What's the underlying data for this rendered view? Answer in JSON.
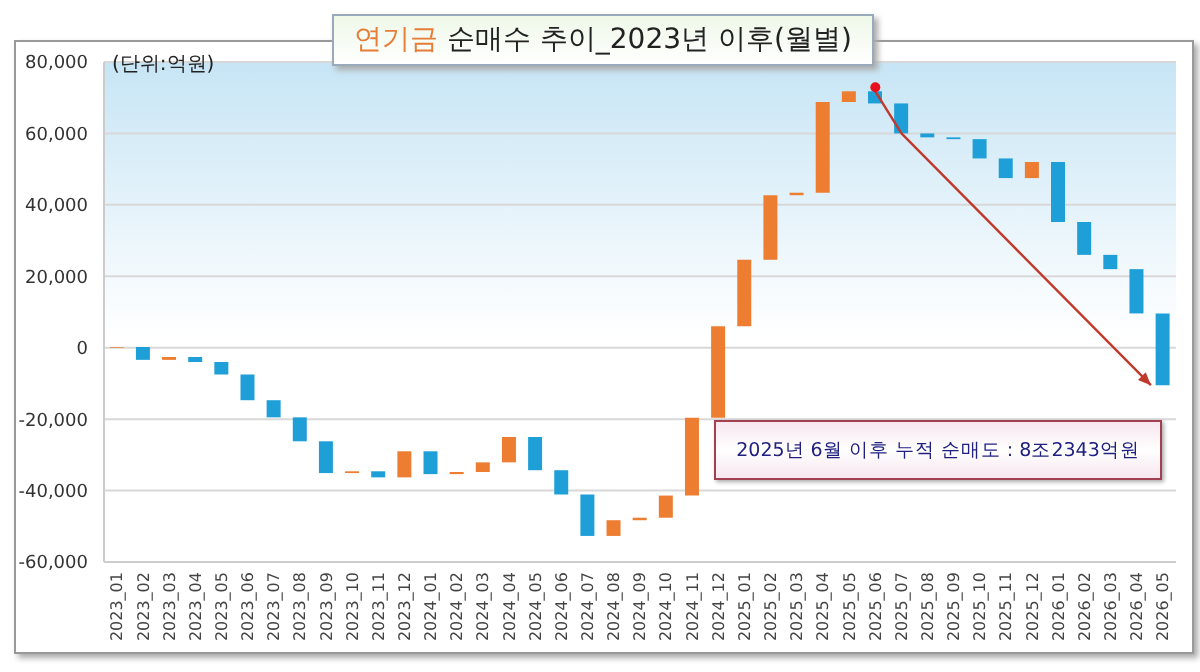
{
  "chart_data": {
    "type": "bar",
    "title": "연기금 순매수 추이_2023년 이후(월별)",
    "ylabel": "(단위:억원)",
    "annotations": [
      "2025년 6월 이후 누적 순매도 : 8조2343억원"
    ],
    "categories": [
      "2023_01",
      "2023_02",
      "2023_03",
      "2023_04",
      "2023_05",
      "2023_06",
      "2023_07",
      "2023_08",
      "2023_09",
      "2023_10",
      "2023_11",
      "2023_12",
      "2024_01",
      "2024_02",
      "2024_03",
      "2024_04",
      "2024_05",
      "2024_06",
      "2024_07",
      "2024_08",
      "2024_09",
      "2024_10",
      "2024_11",
      "2024_12",
      "2025_01",
      "2025_02",
      "2025_03",
      "2025_04",
      "2025_05",
      "2025_06",
      "2025_07",
      "2025_08",
      "2025_09",
      "2025_10",
      "2025_11",
      "2025_12",
      "2026_01",
      "2026_02",
      "2026_03",
      "2026_04",
      "2026_05"
    ],
    "base": [
      0,
      200,
      -3400,
      -2600,
      -4000,
      -7500,
      -14700,
      -19500,
      -26200,
      -35100,
      -34600,
      -36300,
      -29000,
      -35400,
      -34800,
      -32100,
      -25000,
      -34300,
      -41100,
      -52700,
      -48300,
      -47600,
      -41400,
      -19600,
      6000,
      24600,
      42700,
      43400,
      68800,
      71800,
      68400,
      60000,
      58900,
      58400,
      53000,
      47500,
      52000,
      35200,
      26000,
      22000,
      9600
    ],
    "values": [
      200,
      -3600,
      800,
      -1400,
      -3500,
      -7200,
      -4800,
      -6700,
      -8900,
      500,
      -1700,
      7300,
      -6400,
      600,
      2700,
      7100,
      -9300,
      -6800,
      -11600,
      4400,
      700,
      6200,
      21800,
      25600,
      18600,
      18100,
      700,
      25400,
      3000,
      -3400,
      -8400,
      -1100,
      -500,
      -5400,
      -5500,
      4500,
      -16800,
      -9200,
      -4000,
      -12400,
      -20100
    ],
    "colors": [
      "#ed7d31",
      "#1f9fd8",
      "#ed7d31",
      "#1f9fd8",
      "#1f9fd8",
      "#1f9fd8",
      "#1f9fd8",
      "#1f9fd8",
      "#1f9fd8",
      "#ed7d31",
      "#1f9fd8",
      "#ed7d31",
      "#1f9fd8",
      "#ed7d31",
      "#ed7d31",
      "#ed7d31",
      "#1f9fd8",
      "#1f9fd8",
      "#1f9fd8",
      "#ed7d31",
      "#ed7d31",
      "#ed7d31",
      "#ed7d31",
      "#ed7d31",
      "#ed7d31",
      "#ed7d31",
      "#ed7d31",
      "#ed7d31",
      "#ed7d31",
      "#1f9fd8",
      "#1f9fd8",
      "#1f9fd8",
      "#1f9fd8",
      "#1f9fd8",
      "#1f9fd8",
      "#ed7d31",
      "#1f9fd8",
      "#1f9fd8",
      "#1f9fd8",
      "#1f9fd8",
      "#1f9fd8"
    ],
    "ylim": [
      -60000,
      80000
    ],
    "yticks": [
      {
        "value": -60000,
        "label": "-60,000"
      },
      {
        "value": -40000,
        "label": "-40,000"
      },
      {
        "value": -20000,
        "label": "-20,000"
      },
      0,
      {
        "value": 20000,
        "label": "20,000"
      },
      {
        "value": 40000,
        "label": "40,000"
      },
      {
        "value": 60000,
        "label": "60,000"
      },
      {
        "value": 80000,
        "label": "80,000"
      }
    ],
    "grid": "y"
  }
}
